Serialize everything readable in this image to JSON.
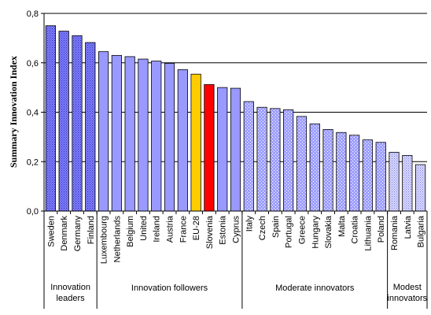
{
  "chart_data": {
    "type": "bar",
    "ylabel": "Summary Innovation Index",
    "ylim": [
      0,
      0.8
    ],
    "yticks": [
      "0,0",
      "0,2",
      "0,4",
      "0,6",
      "0,8"
    ],
    "grid": true,
    "categories": [
      "Sweden",
      "Denmark",
      "Germany",
      "Finland",
      "Luxembourg",
      "Netherlands",
      "Belgium",
      "United",
      "Ireland",
      "Austria",
      "France",
      "EU-28",
      "Slovenia",
      "Estonia",
      "Cyprus",
      "Italy",
      "Czech",
      "Spain",
      "Portugal",
      "Greece",
      "Hungary",
      "Slovakia",
      "Malta",
      "Croatia",
      "Lithuania",
      "Poland",
      "Romania",
      "Latvia",
      "Bulgaria"
    ],
    "values": [
      0.75,
      0.728,
      0.71,
      0.682,
      0.645,
      0.63,
      0.625,
      0.615,
      0.607,
      0.598,
      0.572,
      0.554,
      0.512,
      0.5,
      0.497,
      0.443,
      0.42,
      0.415,
      0.41,
      0.383,
      0.353,
      0.33,
      0.318,
      0.307,
      0.288,
      0.278,
      0.238,
      0.225,
      0.188
    ],
    "bar_colors": {
      "leader": "#8080FF",
      "follower": "#9999FF",
      "eu": "#FFCC00",
      "highlight": "#FF0000",
      "moderate": "#9999FF",
      "modest": "#CCCCFF"
    },
    "bar_styles": [
      "leader",
      "leader",
      "leader",
      "leader",
      "follower",
      "follower",
      "follower",
      "follower",
      "follower",
      "follower",
      "follower",
      "eu",
      "highlight",
      "follower",
      "follower",
      "moderate",
      "moderate",
      "moderate",
      "moderate",
      "moderate",
      "moderate",
      "moderate",
      "moderate",
      "moderate",
      "moderate",
      "moderate",
      "modest",
      "modest",
      "modest"
    ],
    "groups": [
      {
        "label_lines": [
          "Innovation",
          "leaders"
        ],
        "start": 0,
        "end": 3
      },
      {
        "label_lines": [
          "Innovation followers"
        ],
        "start": 4,
        "end": 14
      },
      {
        "label_lines": [
          "Moderate innovators"
        ],
        "start": 15,
        "end": 25
      },
      {
        "label_lines": [
          "Modest",
          "innovators"
        ],
        "start": 26,
        "end": 28
      }
    ]
  }
}
